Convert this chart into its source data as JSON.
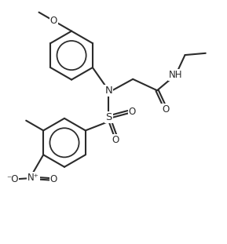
{
  "bg_color": "#ffffff",
  "line_color": "#2b2b2b",
  "line_width": 1.5,
  "figsize": [
    2.89,
    3.11
  ],
  "dpi": 100,
  "xlim": [
    -1.5,
    7.5
  ],
  "ylim": [
    -3.5,
    6.5
  ]
}
